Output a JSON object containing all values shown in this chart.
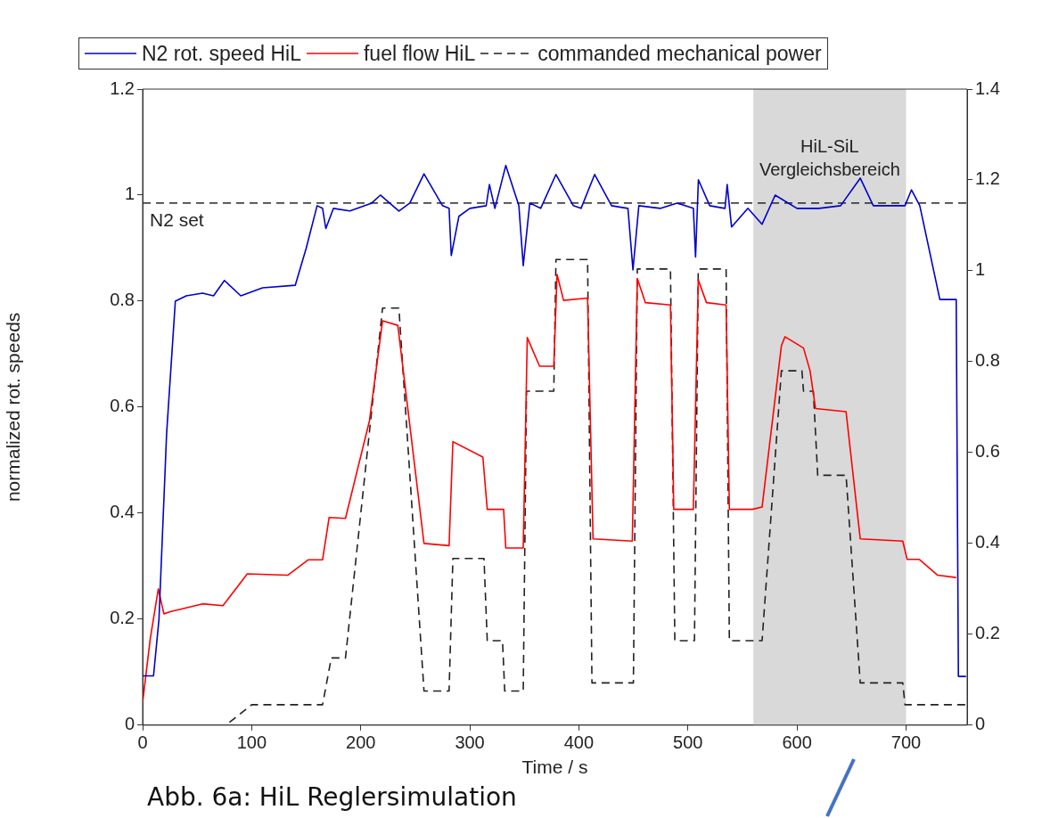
{
  "chart_data": {
    "type": "line",
    "xlabel": "Time / s",
    "ylabel": "normalized rot. speeds",
    "xlim": [
      0,
      756
    ],
    "xticks": [
      0,
      100,
      200,
      300,
      400,
      500,
      600,
      700
    ],
    "ylim": [
      0,
      1.2
    ],
    "yticks": [
      0,
      0.2,
      0.4,
      0.6,
      0.8,
      1,
      1.2
    ],
    "y2lim": [
      0,
      1.4
    ],
    "y2ticks": [
      0,
      0.2,
      0.4,
      0.6,
      0.8,
      1,
      1.2,
      1.4
    ],
    "grid": false,
    "legend": "top",
    "marker": "none",
    "series": [
      {
        "name": "N2 rot. speed HiL",
        "color": "#0000cc",
        "line_style": "solid",
        "x": [
          0,
          10,
          15,
          22,
          30,
          40,
          55,
          65,
          75,
          90,
          110,
          140,
          150,
          160,
          165,
          168,
          175,
          190,
          210,
          218,
          235,
          245,
          258,
          275,
          281,
          283,
          290,
          300,
          315,
          318,
          323,
          333,
          345,
          349,
          355,
          365,
          379,
          395,
          402,
          414.5,
          430,
          445,
          449.6,
          455,
          475,
          490,
          505,
          507,
          509.6,
          520,
          534,
          536,
          540,
          555,
          568,
          580,
          600,
          620,
          640,
          658,
          670,
          699,
          705,
          712.6,
          731,
          746,
          748,
          755
        ],
        "values": [
          0.093,
          0.093,
          0.2,
          0.55,
          0.8,
          0.81,
          0.815,
          0.81,
          0.839,
          0.81,
          0.825,
          0.83,
          0.9,
          0.98,
          0.975,
          0.937,
          0.975,
          0.97,
          0.985,
          1.0,
          0.97,
          0.985,
          1.04,
          0.98,
          0.975,
          0.886,
          0.96,
          0.975,
          0.98,
          1.02,
          0.975,
          1.056,
          0.98,
          0.867,
          0.985,
          0.975,
          1.039,
          0.98,
          0.975,
          1.039,
          0.98,
          0.975,
          0.859,
          0.98,
          0.975,
          0.985,
          0.975,
          0.883,
          1.029,
          0.98,
          0.975,
          1.02,
          0.94,
          0.975,
          0.945,
          1.0,
          0.975,
          0.975,
          0.98,
          1.032,
          0.98,
          0.98,
          1.01,
          0.98,
          0.803,
          0.803,
          0.092,
          0.092
        ]
      },
      {
        "name": "fuel flow HiL",
        "color": "#ff0000",
        "line_style": "solid",
        "x": [
          0,
          7,
          14.4,
          19.5,
          26,
          55,
          73.6,
          96,
          133,
          152,
          165,
          171,
          186,
          208,
          220,
          234,
          258,
          281,
          284.5,
          312,
          316,
          331,
          333,
          348,
          349,
          352.7,
          364,
          377,
          380,
          386,
          408,
          413,
          449,
          453.6,
          461,
          484,
          487,
          505,
          509.5,
          517,
          535,
          538,
          559,
          568,
          585.7,
          589,
          606,
          612,
          617,
          645,
          658,
          697,
          701,
          712,
          729,
          746
        ],
        "values": [
          0.05,
          0.19,
          0.3,
          0.245,
          0.25,
          0.267,
          0.263,
          0.333,
          0.33,
          0.364,
          0.364,
          0.457,
          0.455,
          0.67,
          0.89,
          0.88,
          0.4,
          0.395,
          0.624,
          0.59,
          0.475,
          0.475,
          0.39,
          0.39,
          0.39,
          0.853,
          0.79,
          0.79,
          0.992,
          0.935,
          0.94,
          0.41,
          0.405,
          0.983,
          0.93,
          0.925,
          0.475,
          0.475,
          0.98,
          0.93,
          0.925,
          0.475,
          0.475,
          0.48,
          0.835,
          0.855,
          0.83,
          0.78,
          0.697,
          0.69,
          0.41,
          0.405,
          0.365,
          0.365,
          0.33,
          0.325
        ],
        "axis": "y2"
      },
      {
        "name": "commanded mechanical power",
        "color": "#222222",
        "line_style": "dashed",
        "x": [
          79.6,
          100,
          165,
          173,
          186,
          220,
          235,
          258,
          281,
          284.5,
          313,
          316,
          330,
          332,
          347,
          349,
          352,
          377,
          379,
          408,
          412,
          450,
          453.6,
          484,
          488,
          506,
          509.5,
          535,
          538,
          568,
          585.7,
          604.5,
          606,
          615,
          619,
          645,
          658,
          697,
          699,
          755
        ],
        "values": [
          0.006,
          0.045,
          0.045,
          0.148,
          0.148,
          0.918,
          0.918,
          0.075,
          0.075,
          0.367,
          0.367,
          0.186,
          0.186,
          0.075,
          0.075,
          0.075,
          0.735,
          0.735,
          1.025,
          1.025,
          0.093,
          0.093,
          1.004,
          1.004,
          0.186,
          0.186,
          1.004,
          1.004,
          0.186,
          0.186,
          0.78,
          0.78,
          0.735,
          0.735,
          0.55,
          0.55,
          0.093,
          0.093,
          0.045,
          0.045
        ],
        "axis": "y2"
      }
    ],
    "ref_lines": [
      {
        "axis": "y",
        "value": 0.985,
        "label": "N2 set",
        "color": "#222222",
        "line_style": "dashed"
      }
    ],
    "bands": [
      {
        "axis": "x",
        "from": 560,
        "to": 700,
        "label": "HiL-SiL\nVergleichsbereich",
        "color": "#d9d9d9"
      }
    ],
    "annotations": [
      "Abb. 6a: HiL Reglersimulation"
    ]
  }
}
